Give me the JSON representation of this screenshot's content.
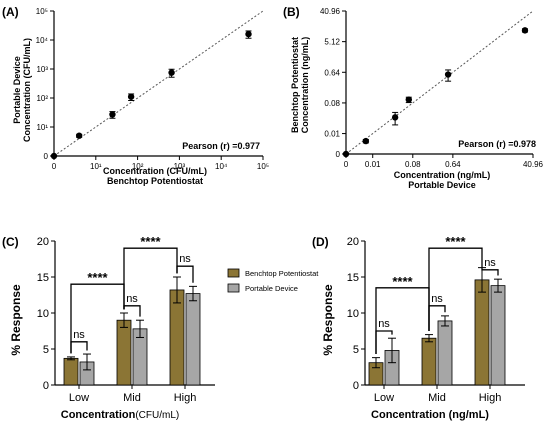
{
  "colors": {
    "benchtop": "#8b7535",
    "portable": "#a6a6a6",
    "fit_line": "#555555",
    "ink": "#000000"
  },
  "legend": {
    "items": [
      "Benchtop Potentiostat",
      "Portable Device"
    ]
  },
  "chart_data": [
    {
      "panel_label": "(A)",
      "type": "scatter",
      "title": "",
      "xlabel": "Concentration (CFU/mL)",
      "xlabel2": "Benchtop Potentiostat",
      "ylabel": "Portable Device",
      "ylabel2": "Concentration (CFU/mL)",
      "xscale": "log",
      "yscale": "log",
      "xlim": [
        1,
        100000
      ],
      "ylim": [
        1,
        100000
      ],
      "xticks": [
        1,
        10,
        100,
        1000,
        10000,
        100000
      ],
      "xtick_labels": [
        "0",
        "10¹",
        "10²",
        "10³",
        "10⁴",
        "10⁵"
      ],
      "yticks": [
        1,
        10,
        100,
        1000,
        10000,
        100000
      ],
      "ytick_labels": [
        "0",
        "10¹",
        "10²",
        "10³",
        "10⁴",
        "10⁵"
      ],
      "fit_line": true,
      "annotation": "Pearson (r) =0.977",
      "points": [
        {
          "x": 1,
          "y": 1,
          "err": 0
        },
        {
          "x": 4,
          "y": 5,
          "err": 0.6
        },
        {
          "x": 25,
          "y": 27,
          "err": 7
        },
        {
          "x": 70,
          "y": 110,
          "err": 28
        },
        {
          "x": 650,
          "y": 750,
          "err": 230
        },
        {
          "x": 45000,
          "y": 16000,
          "err": 4500
        }
      ]
    },
    {
      "panel_label": "(B)",
      "type": "scatter",
      "title": "",
      "xlabel": "Concentration (ng/mL)",
      "xlabel2": "Portable Device",
      "ylabel": "Benchtop Potentiostat",
      "ylabel2": "Concentration (ng/mL)",
      "xscale": "log2",
      "yscale": "log2",
      "xlim": [
        0.0025,
        40.96
      ],
      "ylim": [
        0.0025,
        40.96
      ],
      "xticks": [
        0.0025,
        0.01,
        0.08,
        0.64,
        40.96
      ],
      "xtick_labels": [
        "0",
        "0.01",
        "0.08",
        "0.64",
        "40.96"
      ],
      "yticks": [
        0.0025,
        0.01,
        0.08,
        0.64,
        5.12,
        40.96
      ],
      "ytick_labels": [
        "0",
        "0.01",
        "0.08",
        "0.64",
        "5.12",
        "40.96"
      ],
      "fit_line": true,
      "annotation": "Pearson (r) =0.978",
      "points": [
        {
          "x": 0.0025,
          "y": 0.0025,
          "err": 0
        },
        {
          "x": 0.007,
          "y": 0.006,
          "err": 0.0007
        },
        {
          "x": 0.032,
          "y": 0.03,
          "err": 0.012
        },
        {
          "x": 0.065,
          "y": 0.1,
          "err": 0.018
        },
        {
          "x": 0.5,
          "y": 0.55,
          "err": 0.2
        },
        {
          "x": 27,
          "y": 11,
          "err": 1.2
        }
      ]
    },
    {
      "panel_label": "(C)",
      "type": "bar",
      "title": "",
      "xlabel": "Concentration",
      "xlabel_unit": "(CFU/mL)",
      "ylabel": "% Response",
      "ylim": [
        0,
        20
      ],
      "yticks": [
        0,
        5,
        10,
        15,
        20
      ],
      "categories": [
        "Low",
        "Mid",
        "High"
      ],
      "series": [
        {
          "name": "Benchtop Potentiostat",
          "values": [
            3.7,
            9.0,
            13.2
          ],
          "errors": [
            0.2,
            1.0,
            1.8
          ]
        },
        {
          "name": "Portable Device",
          "values": [
            3.2,
            7.8,
            12.7
          ],
          "errors": [
            1.1,
            1.2,
            1.0
          ]
        }
      ],
      "brackets": [
        {
          "from": [
            0,
            0
          ],
          "to": [
            0,
            1
          ],
          "y": 6.0,
          "label": "ns"
        },
        {
          "from": [
            1,
            0
          ],
          "to": [
            1,
            1
          ],
          "y": 11.0,
          "label": "ns"
        },
        {
          "from": [
            2,
            0
          ],
          "to": [
            2,
            1
          ],
          "y": 16.5,
          "label": "ns"
        },
        {
          "from": [
            0,
            0
          ],
          "to": [
            1,
            0
          ],
          "y": 14.0,
          "label": "****"
        },
        {
          "from": [
            1,
            0
          ],
          "to": [
            2,
            0
          ],
          "y": 19.0,
          "label": "****"
        }
      ]
    },
    {
      "panel_label": "(D)",
      "type": "bar",
      "title": "",
      "xlabel": "Concentration (ng/mL)",
      "xlabel_unit": "",
      "ylabel": "% Response",
      "ylim": [
        0,
        20
      ],
      "yticks": [
        0,
        5,
        10,
        15,
        20
      ],
      "categories": [
        "Low",
        "Mid",
        "High"
      ],
      "series": [
        {
          "name": "Benchtop Potentiostat",
          "values": [
            3.1,
            6.5,
            14.6
          ],
          "errors": [
            0.7,
            0.5,
            1.7
          ]
        },
        {
          "name": "Portable Device",
          "values": [
            4.8,
            8.9,
            13.8
          ],
          "errors": [
            1.7,
            0.7,
            0.9
          ]
        }
      ],
      "brackets": [
        {
          "from": [
            0,
            0
          ],
          "to": [
            0,
            1
          ],
          "y": 7.5,
          "label": "ns"
        },
        {
          "from": [
            1,
            0
          ],
          "to": [
            1,
            1
          ],
          "y": 11.0,
          "label": "ns"
        },
        {
          "from": [
            2,
            0
          ],
          "to": [
            2,
            1
          ],
          "y": 16.0,
          "label": "ns"
        },
        {
          "from": [
            0,
            0
          ],
          "to": [
            1,
            0
          ],
          "y": 13.5,
          "label": "****"
        },
        {
          "from": [
            1,
            0
          ],
          "to": [
            2,
            0
          ],
          "y": 19.0,
          "label": "****"
        }
      ]
    }
  ]
}
